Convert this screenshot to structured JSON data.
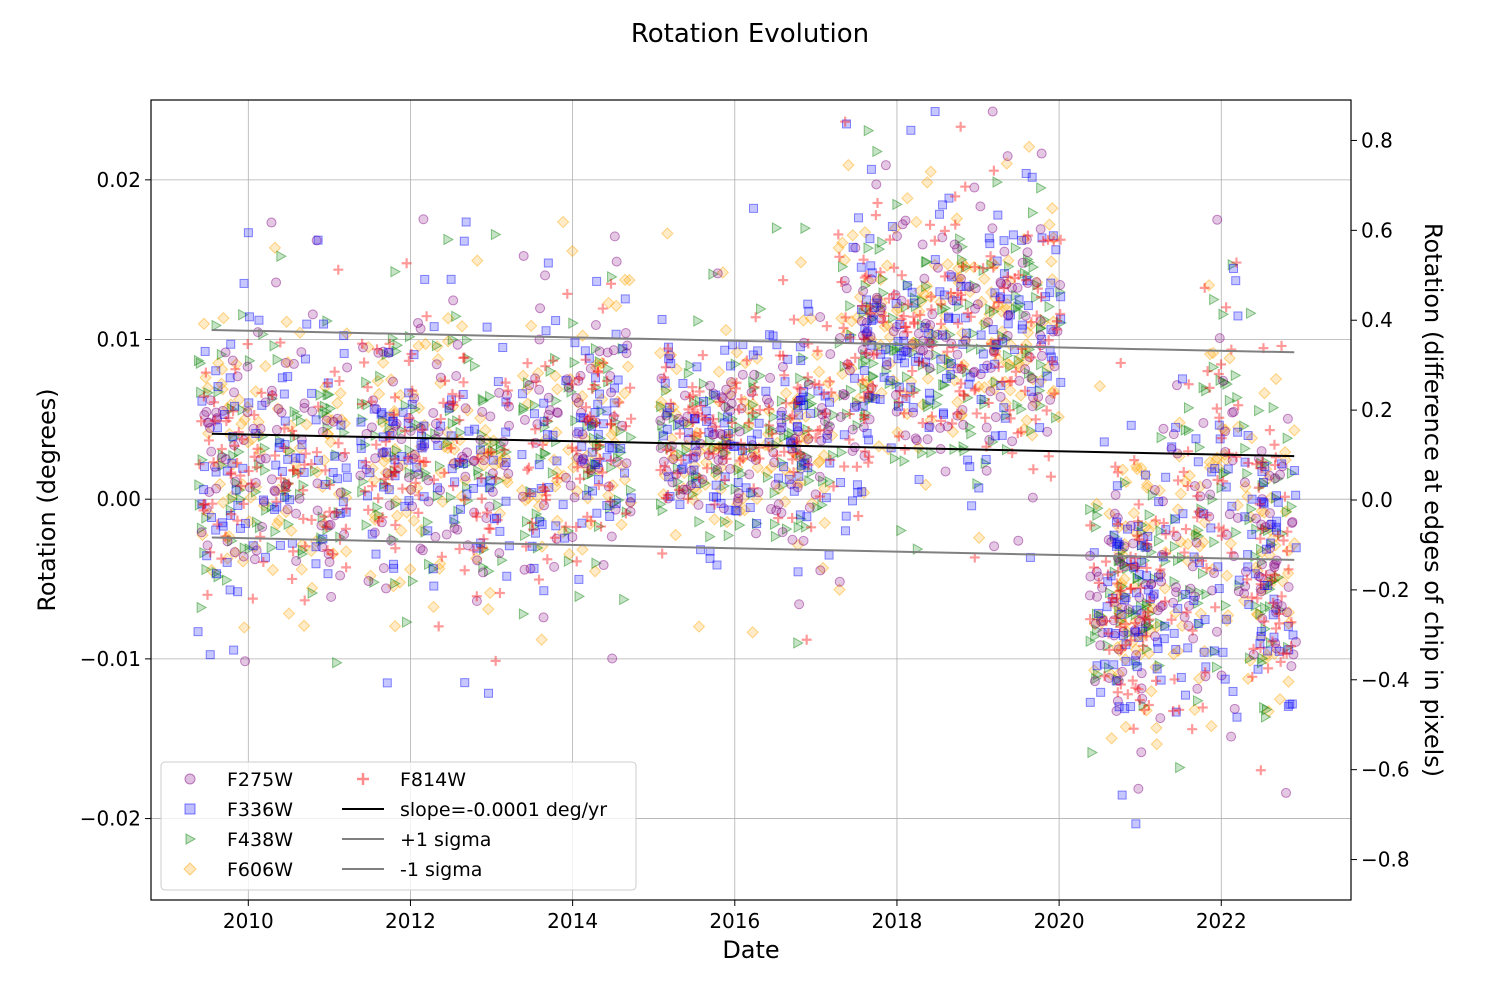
{
  "chart_data": {
    "type": "scatter",
    "title": "Rotation Evolution",
    "xlabel": "Date",
    "ylabel": "Rotation (degrees)",
    "y2label": "Rotation (difference at edges of chip in pixels)",
    "xlim": [
      2008.8,
      2023.6
    ],
    "ylim": [
      -0.0251,
      0.025
    ],
    "y2lim": [
      -0.89,
      0.89
    ],
    "grid": true,
    "legend_position": "lower-left",
    "x_ticks": [
      2010,
      2012,
      2014,
      2016,
      2018,
      2020,
      2022
    ],
    "x_tick_labels": [
      "2010",
      "2012",
      "2014",
      "2016",
      "2018",
      "2020",
      "2022"
    ],
    "y_ticks": [
      0.02,
      0.01,
      0.0,
      -0.01,
      -0.02
    ],
    "y_tick_labels": [
      "0.02",
      "0.01",
      "0.00",
      "−0.01",
      "−0.02"
    ],
    "y2_ticks": [
      0.8,
      0.6,
      0.4,
      0.2,
      0.0,
      -0.2,
      -0.4,
      -0.6,
      -0.8
    ],
    "y2_tick_labels": [
      "0.8",
      "0.6",
      "0.4",
      "0.2",
      "0.0",
      "−0.2",
      "−0.4",
      "−0.6",
      "−0.8"
    ],
    "series": [
      {
        "name": "F275W",
        "marker": "circle",
        "color": "#800080"
      },
      {
        "name": "F336W",
        "marker": "square",
        "color": "#0000ff"
      },
      {
        "name": "F438W",
        "marker": "triangle-right",
        "color": "#008000"
      },
      {
        "name": "F606W",
        "marker": "diamond",
        "color": "#ffa500"
      },
      {
        "name": "F814W",
        "marker": "plus",
        "color": "#ff0000"
      }
    ],
    "clusters": [
      {
        "x": 2009.6,
        "center": 0.003,
        "spread": 0.004
      },
      {
        "x": 2010.0,
        "center": 0.0025,
        "spread": 0.004
      },
      {
        "x": 2010.5,
        "center": 0.003,
        "spread": 0.004
      },
      {
        "x": 2011.0,
        "center": 0.002,
        "spread": 0.004
      },
      {
        "x": 2011.6,
        "center": 0.003,
        "spread": 0.004
      },
      {
        "x": 2012.0,
        "center": 0.003,
        "spread": 0.004
      },
      {
        "x": 2012.5,
        "center": 0.003,
        "spread": 0.004
      },
      {
        "x": 2013.0,
        "center": 0.002,
        "spread": 0.004
      },
      {
        "x": 2013.6,
        "center": 0.003,
        "spread": 0.004
      },
      {
        "x": 2014.1,
        "center": 0.004,
        "spread": 0.004
      },
      {
        "x": 2014.5,
        "center": 0.004,
        "spread": 0.004
      },
      {
        "x": 2015.3,
        "center": 0.004,
        "spread": 0.003
      },
      {
        "x": 2015.7,
        "center": 0.003,
        "spread": 0.003
      },
      {
        "x": 2016.1,
        "center": 0.004,
        "spread": 0.003
      },
      {
        "x": 2016.6,
        "center": 0.004,
        "spread": 0.003
      },
      {
        "x": 2017.0,
        "center": 0.004,
        "spread": 0.004
      },
      {
        "x": 2017.5,
        "center": 0.009,
        "spread": 0.004
      },
      {
        "x": 2017.8,
        "center": 0.01,
        "spread": 0.004
      },
      {
        "x": 2018.2,
        "center": 0.009,
        "spread": 0.004
      },
      {
        "x": 2018.6,
        "center": 0.011,
        "spread": 0.004
      },
      {
        "x": 2019.0,
        "center": 0.009,
        "spread": 0.004
      },
      {
        "x": 2019.4,
        "center": 0.011,
        "spread": 0.004
      },
      {
        "x": 2019.8,
        "center": 0.01,
        "spread": 0.004
      },
      {
        "x": 2020.6,
        "center": -0.006,
        "spread": 0.004
      },
      {
        "x": 2020.9,
        "center": -0.007,
        "spread": 0.004
      },
      {
        "x": 2021.1,
        "center": -0.006,
        "spread": 0.004
      },
      {
        "x": 2021.6,
        "center": -0.004,
        "spread": 0.005
      },
      {
        "x": 2022.0,
        "center": 0.001,
        "spread": 0.008
      },
      {
        "x": 2022.5,
        "center": -0.003,
        "spread": 0.004
      },
      {
        "x": 2022.7,
        "center": -0.004,
        "spread": 0.005
      }
    ],
    "lines": [
      {
        "name": "slope=-0.0001 deg/yr",
        "x": [
          2009.55,
          2022.9
        ],
        "y": [
          0.0041,
          0.0027
        ],
        "color": "#000000"
      },
      {
        "name": "+1 sigma",
        "x": [
          2009.55,
          2022.9
        ],
        "y": [
          0.0106,
          0.0092
        ],
        "color": "#808080"
      },
      {
        "name": "-1 sigma",
        "x": [
          2009.55,
          2022.9
        ],
        "y": [
          -0.0024,
          -0.0038
        ],
        "color": "#808080"
      }
    ]
  }
}
